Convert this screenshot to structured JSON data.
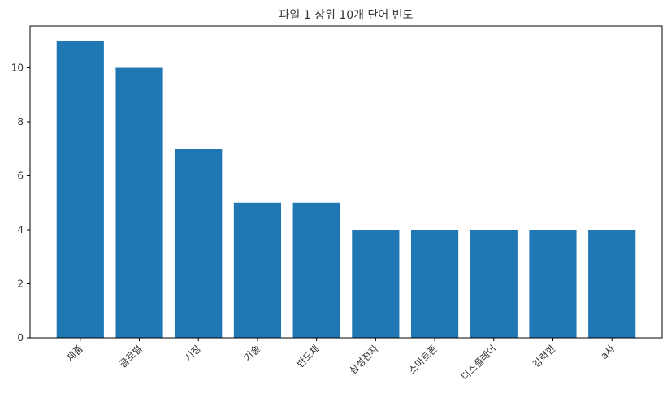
{
  "chart_data": {
    "type": "bar",
    "title": "파일 1 상위 10개 단어 빈도",
    "xlabel": "",
    "ylabel": "",
    "categories": [
      "제품",
      "글로벌",
      "시장",
      "기술",
      "반도체",
      "삼성전자",
      "스마트폰",
      "디스플레이",
      "강력한",
      "a사"
    ],
    "values": [
      11,
      10,
      7,
      5,
      5,
      4,
      4,
      4,
      4,
      4
    ],
    "ylim": [
      0,
      11.55
    ],
    "yticks": [
      0,
      2,
      4,
      6,
      8,
      10
    ],
    "bar_color": "#1f77b4",
    "grid": false,
    "legend": "none"
  }
}
